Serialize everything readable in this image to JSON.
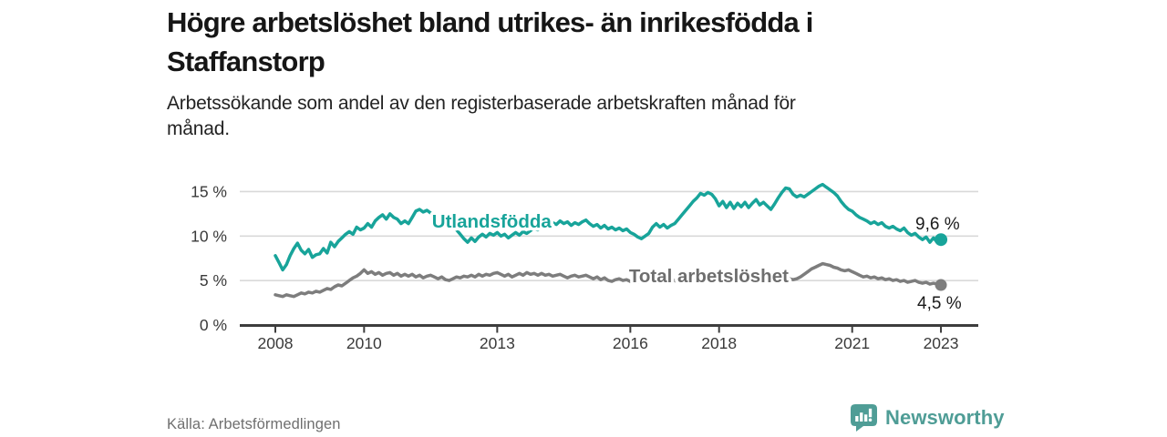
{
  "header": {
    "title_lines": [
      "Högre arbetslöshet bland utrikes- än inrikesfödda i",
      "Staffanstorp"
    ],
    "subtitle_lines": [
      "Arbetssökande som andel av den registerbaserade arbetskraften månad för",
      "månad."
    ]
  },
  "footer": {
    "source": "Källa: Arbetsförmedlingen",
    "brand": "Newsworthy"
  },
  "colors": {
    "foreign_born_line": "#18A49A",
    "total_line": "#7D7D7D",
    "total_label": "#6E6E6E",
    "grid": "#D9D9D9",
    "axis": "#3D3D3D",
    "tick_text": "#3A3A3A",
    "end_value_text": "#1A1A1A",
    "brand_teal": "#4F9D96"
  },
  "chart_data": {
    "type": "line",
    "title": "Högre arbetslöshet bland utrikes- än inrikesfödda i Staffanstorp",
    "subtitle": "Arbetssökande som andel av den registerbaserade arbetskraften månad för månad.",
    "x_start_year": 2008,
    "x_step_months": 1,
    "x_ticks": [
      2008,
      2010,
      2013,
      2016,
      2018,
      2021,
      2023
    ],
    "y_ticks": [
      0,
      5,
      10,
      15
    ],
    "y_tick_suffix": " %",
    "ylim": [
      0,
      16.5
    ],
    "xlim": [
      2007.2,
      2023.85
    ],
    "grid": "horizontal",
    "legend_position": "inline-labels",
    "series": [
      {
        "id": "utlandsfodda",
        "name": "Utlandsfödda",
        "color": "#18A49A",
        "label_color": "#18A49A",
        "end_label": "9,6 %",
        "end_value": 9.6,
        "label_pos": {
          "year": 2011.53,
          "value": 10.95
        },
        "values": [
          7.8,
          7.0,
          6.2,
          6.8,
          7.8,
          8.6,
          9.2,
          8.4,
          8.0,
          8.5,
          7.6,
          7.9,
          8.0,
          8.6,
          8.1,
          9.3,
          8.8,
          9.4,
          9.8,
          10.2,
          10.5,
          10.2,
          11.0,
          10.7,
          10.9,
          11.4,
          11.0,
          11.7,
          12.1,
          12.4,
          11.9,
          12.5,
          12.1,
          11.9,
          11.4,
          11.7,
          11.4,
          12.1,
          12.8,
          13.0,
          12.7,
          12.9,
          12.6,
          12.2,
          11.7,
          12.1,
          11.2,
          11.4,
          11.2,
          10.7,
          10.2,
          9.7,
          9.3,
          9.8,
          9.4,
          9.9,
          10.2,
          9.9,
          10.3,
          10.1,
          10.4,
          10.0,
          10.2,
          9.8,
          10.1,
          10.4,
          10.1,
          10.5,
          10.3,
          10.6,
          10.9,
          10.7,
          11.0,
          11.3,
          11.1,
          11.5,
          11.3,
          11.7,
          11.4,
          11.6,
          11.2,
          11.5,
          11.3,
          11.6,
          11.8,
          11.4,
          11.1,
          11.3,
          10.9,
          11.2,
          10.8,
          11.0,
          10.7,
          10.9,
          10.6,
          10.8,
          10.4,
          10.2,
          9.9,
          9.7,
          10.0,
          10.3,
          11.0,
          11.4,
          11.0,
          11.3,
          10.9,
          11.2,
          11.4,
          11.9,
          12.4,
          12.9,
          13.4,
          13.9,
          14.3,
          14.8,
          14.6,
          14.9,
          14.7,
          14.2,
          13.4,
          13.9,
          13.2,
          13.8,
          13.1,
          13.7,
          13.3,
          13.8,
          13.2,
          13.7,
          14.1,
          13.5,
          13.8,
          13.4,
          13.0,
          13.6,
          14.3,
          14.9,
          15.4,
          15.3,
          14.7,
          14.4,
          14.6,
          14.4,
          14.7,
          15.0,
          15.3,
          15.6,
          15.8,
          15.5,
          15.2,
          14.9,
          14.5,
          13.9,
          13.4,
          13.0,
          12.8,
          12.4,
          12.1,
          11.9,
          11.7,
          11.4,
          11.6,
          11.3,
          11.5,
          11.1,
          10.9,
          11.1,
          10.8,
          10.6,
          10.9,
          10.4,
          10.1,
          10.3,
          9.9,
          9.6,
          9.9,
          9.3,
          9.8,
          9.3,
          9.6
        ]
      },
      {
        "id": "total",
        "name": "Total arbetslöshet",
        "color": "#7D7D7D",
        "label_color": "#6E6E6E",
        "end_label": "4,5 %",
        "end_value": 4.5,
        "label_pos": {
          "year": 2015.97,
          "value": 4.82
        },
        "values": [
          3.4,
          3.3,
          3.2,
          3.4,
          3.3,
          3.2,
          3.4,
          3.6,
          3.5,
          3.7,
          3.6,
          3.8,
          3.7,
          3.9,
          4.1,
          4.0,
          4.3,
          4.5,
          4.4,
          4.7,
          5.0,
          5.3,
          5.5,
          5.8,
          6.2,
          5.8,
          6.0,
          5.7,
          5.9,
          5.6,
          5.8,
          5.9,
          5.6,
          5.8,
          5.5,
          5.7,
          5.5,
          5.7,
          5.4,
          5.6,
          5.3,
          5.5,
          5.6,
          5.4,
          5.2,
          5.4,
          5.1,
          5.0,
          5.2,
          5.4,
          5.3,
          5.5,
          5.4,
          5.6,
          5.4,
          5.7,
          5.5,
          5.7,
          5.6,
          5.8,
          5.9,
          5.7,
          5.5,
          5.7,
          5.4,
          5.6,
          5.8,
          5.6,
          5.9,
          5.7,
          5.8,
          5.6,
          5.8,
          5.6,
          5.7,
          5.5,
          5.6,
          5.7,
          5.5,
          5.3,
          5.5,
          5.6,
          5.4,
          5.5,
          5.6,
          5.4,
          5.2,
          5.4,
          5.1,
          5.3,
          5.0,
          4.9,
          5.1,
          5.2,
          5.0,
          5.1,
          4.9,
          5.0,
          4.8,
          5.0,
          4.9,
          5.1,
          4.9,
          5.0,
          4.8,
          5.0,
          4.9,
          5.1,
          5.0,
          4.8,
          5.0,
          4.9,
          5.1,
          5.0,
          4.9,
          5.1,
          5.0,
          4.9,
          5.0,
          4.8,
          4.9,
          5.1,
          4.9,
          5.0,
          4.8,
          5.0,
          4.9,
          5.1,
          5.0,
          4.9,
          5.1,
          5.0,
          4.9,
          5.1,
          5.0,
          4.9,
          5.0,
          5.1,
          5.0,
          5.2,
          5.1,
          5.2,
          5.4,
          5.7,
          6.0,
          6.3,
          6.5,
          6.7,
          6.9,
          6.8,
          6.7,
          6.5,
          6.4,
          6.2,
          6.1,
          6.2,
          6.0,
          5.8,
          5.6,
          5.4,
          5.5,
          5.3,
          5.4,
          5.2,
          5.3,
          5.1,
          5.2,
          5.0,
          5.1,
          4.9,
          5.0,
          4.8,
          4.9,
          5.0,
          4.8,
          4.7,
          4.8,
          4.6,
          4.7,
          4.6,
          4.5
        ]
      }
    ]
  }
}
